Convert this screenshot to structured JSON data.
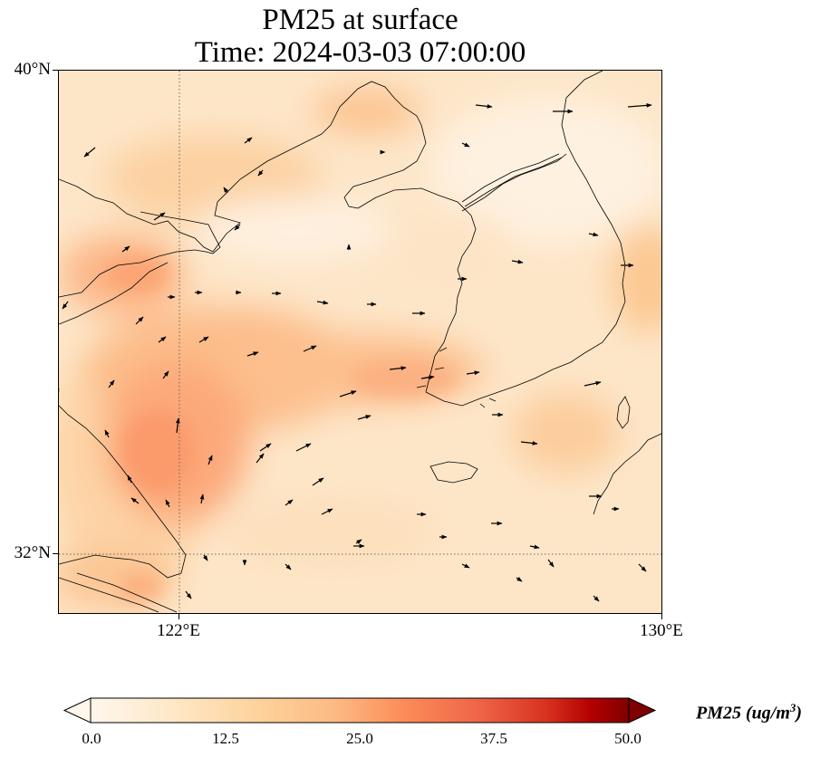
{
  "title": {
    "line1": "PM25 at surface",
    "line2": "Time: 2024-03-03 07:00:00"
  },
  "axes": {
    "lat_labels": [
      "40°N",
      "32°N"
    ],
    "lon_labels": [
      "122°E",
      "130°E"
    ]
  },
  "colorbar": {
    "ticks": [
      "0.0",
      "12.5",
      "25.0",
      "37.5",
      "50.0"
    ],
    "label_main": "PM25 (ug/m",
    "label_sup": "3",
    "label_end": ")",
    "colormap": "OrRd",
    "extend": "both"
  },
  "map": {
    "projection": "PlateCarree",
    "extent": {
      "lon_min": 120.0,
      "lon_max": 130.0,
      "lat_min": 31.0,
      "lat_max": 40.0
    },
    "gridlines": {
      "style": "dotted",
      "lons": [
        122
      ],
      "lats": [
        32
      ]
    },
    "field": "PM25",
    "vectors": "wind"
  }
}
